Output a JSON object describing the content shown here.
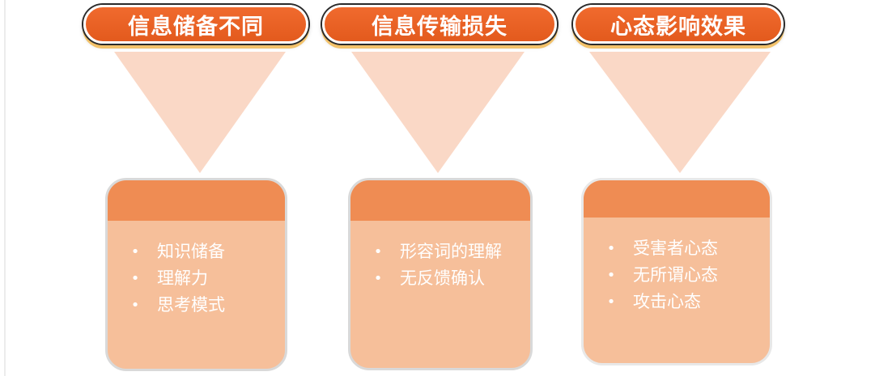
{
  "columns": [
    {
      "title": "信息储备不同",
      "items": [
        "知识储备",
        "理解力",
        "思考模式"
      ]
    },
    {
      "title": "信息传输损失",
      "items": [
        "形容词的理解",
        "无反馈确认"
      ]
    },
    {
      "title": "心态影响效果",
      "items": [
        "受害者心态",
        "无所谓心态",
        "攻击心态"
      ]
    }
  ],
  "bullet_symbol": "•",
  "colors": {
    "pill": "#e8622a",
    "funnel": "#fad8c6",
    "card_body": "#f6bf9a",
    "card_header": "#ef8c53",
    "text_on_card": "#ffffff"
  }
}
